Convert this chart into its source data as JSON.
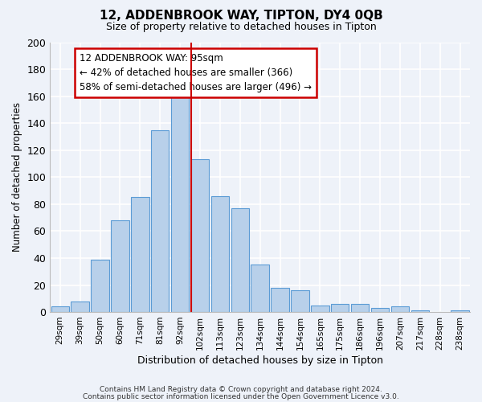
{
  "title": "12, ADDENBROOK WAY, TIPTON, DY4 0QB",
  "subtitle": "Size of property relative to detached houses in Tipton",
  "xlabel": "Distribution of detached houses by size in Tipton",
  "ylabel": "Number of detached properties",
  "bar_labels": [
    "29sqm",
    "39sqm",
    "50sqm",
    "60sqm",
    "71sqm",
    "81sqm",
    "92sqm",
    "102sqm",
    "113sqm",
    "123sqm",
    "134sqm",
    "144sqm",
    "154sqm",
    "165sqm",
    "175sqm",
    "186sqm",
    "196sqm",
    "207sqm",
    "217sqm",
    "228sqm",
    "238sqm"
  ],
  "bar_values": [
    4,
    8,
    39,
    68,
    85,
    135,
    160,
    113,
    86,
    77,
    35,
    18,
    16,
    5,
    6,
    6,
    3,
    4,
    1,
    0,
    1
  ],
  "bar_color": "#b8d0ea",
  "bar_edge_color": "#5b9bd5",
  "vline_color": "#cc0000",
  "annotation_title": "12 ADDENBROOK WAY: 95sqm",
  "annotation_line1": "← 42% of detached houses are smaller (366)",
  "annotation_line2": "58% of semi-detached houses are larger (496) →",
  "annotation_box_color": "#ffffff",
  "annotation_box_edge": "#cc0000",
  "ylim": [
    0,
    200
  ],
  "yticks": [
    0,
    20,
    40,
    60,
    80,
    100,
    120,
    140,
    160,
    180,
    200
  ],
  "footer1": "Contains HM Land Registry data © Crown copyright and database right 2024.",
  "footer2": "Contains public sector information licensed under the Open Government Licence v3.0.",
  "bg_color": "#eef2f9",
  "grid_color": "#ffffff"
}
